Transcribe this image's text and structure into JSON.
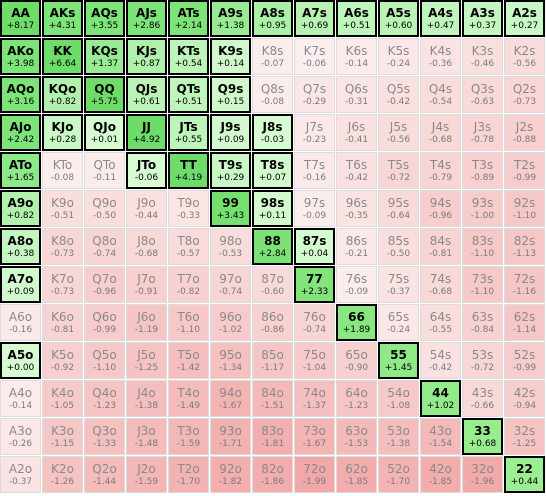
{
  "grid": {
    "selected_color": "#7ee57a",
    "ranks": [
      "A",
      "K",
      "Q",
      "J",
      "T",
      "9",
      "8",
      "7",
      "6",
      "5",
      "4",
      "3",
      "2"
    ],
    "rows": [
      [
        {
          "hand": "AA",
          "value": "+8.17",
          "selected": true
        },
        {
          "hand": "AKs",
          "value": "+4.31",
          "selected": true
        },
        {
          "hand": "AQs",
          "value": "+3.55",
          "selected": true
        },
        {
          "hand": "AJs",
          "value": "+2.86",
          "selected": true
        },
        {
          "hand": "ATs",
          "value": "+2.14",
          "selected": true
        },
        {
          "hand": "A9s",
          "value": "+1.38",
          "selected": true
        },
        {
          "hand": "A8s",
          "value": "+0.95",
          "selected": true
        },
        {
          "hand": "A7s",
          "value": "+0.69",
          "selected": true
        },
        {
          "hand": "A6s",
          "value": "+0.51",
          "selected": true
        },
        {
          "hand": "A5s",
          "value": "+0.60",
          "selected": true
        },
        {
          "hand": "A4s",
          "value": "+0.47",
          "selected": true
        },
        {
          "hand": "A3s",
          "value": "+0.37",
          "selected": true
        },
        {
          "hand": "A2s",
          "value": "+0.27",
          "selected": true
        }
      ],
      [
        {
          "hand": "AKo",
          "value": "+3.98",
          "selected": true
        },
        {
          "hand": "KK",
          "value": "+6.64",
          "selected": true
        },
        {
          "hand": "KQs",
          "value": "+1.37",
          "selected": true
        },
        {
          "hand": "KJs",
          "value": "+0.87",
          "selected": true
        },
        {
          "hand": "KTs",
          "value": "+0.54",
          "selected": true
        },
        {
          "hand": "K9s",
          "value": "+0.14",
          "selected": true
        },
        {
          "hand": "K8s",
          "value": "-0.07",
          "selected": false
        },
        {
          "hand": "K7s",
          "value": "-0.06",
          "selected": false
        },
        {
          "hand": "K6s",
          "value": "-0.14",
          "selected": false
        },
        {
          "hand": "K5s",
          "value": "-0.24",
          "selected": false
        },
        {
          "hand": "K4s",
          "value": "-0.36",
          "selected": false
        },
        {
          "hand": "K3s",
          "value": "-0.46",
          "selected": false
        },
        {
          "hand": "K2s",
          "value": "-0.56",
          "selected": false
        }
      ],
      [
        {
          "hand": "AQo",
          "value": "+3.16",
          "selected": true
        },
        {
          "hand": "KQo",
          "value": "+0.82",
          "selected": true
        },
        {
          "hand": "QQ",
          "value": "+5.75",
          "selected": true
        },
        {
          "hand": "QJs",
          "value": "+0.61",
          "selected": true
        },
        {
          "hand": "QTs",
          "value": "+0.51",
          "selected": true
        },
        {
          "hand": "Q9s",
          "value": "+0.15",
          "selected": true
        },
        {
          "hand": "Q8s",
          "value": "-0.08",
          "selected": false
        },
        {
          "hand": "Q7s",
          "value": "-0.29",
          "selected": false
        },
        {
          "hand": "Q6s",
          "value": "-0.31",
          "selected": false
        },
        {
          "hand": "Q5s",
          "value": "-0.42",
          "selected": false
        },
        {
          "hand": "Q4s",
          "value": "-0.54",
          "selected": false
        },
        {
          "hand": "Q3s",
          "value": "-0.63",
          "selected": false
        },
        {
          "hand": "Q2s",
          "value": "-0.73",
          "selected": false
        }
      ],
      [
        {
          "hand": "AJo",
          "value": "+2.42",
          "selected": true
        },
        {
          "hand": "KJo",
          "value": "+0.28",
          "selected": true
        },
        {
          "hand": "QJo",
          "value": "+0.01",
          "selected": true
        },
        {
          "hand": "JJ",
          "value": "+4.92",
          "selected": true
        },
        {
          "hand": "JTs",
          "value": "+0.55",
          "selected": true
        },
        {
          "hand": "J9s",
          "value": "+0.09",
          "selected": true
        },
        {
          "hand": "J8s",
          "value": "-0.03",
          "selected": true
        },
        {
          "hand": "J7s",
          "value": "-0.23",
          "selected": false
        },
        {
          "hand": "J6s",
          "value": "-0.41",
          "selected": false
        },
        {
          "hand": "J5s",
          "value": "-0.56",
          "selected": false
        },
        {
          "hand": "J4s",
          "value": "-0.68",
          "selected": false
        },
        {
          "hand": "J3s",
          "value": "-0.78",
          "selected": false
        },
        {
          "hand": "J2s",
          "value": "-0.88",
          "selected": false
        }
      ],
      [
        {
          "hand": "ATo",
          "value": "+1.65",
          "selected": true
        },
        {
          "hand": "KTo",
          "value": "-0.08",
          "selected": false
        },
        {
          "hand": "QTo",
          "value": "-0.11",
          "selected": false
        },
        {
          "hand": "JTo",
          "value": "-0.06",
          "selected": true
        },
        {
          "hand": "TT",
          "value": "+4.19",
          "selected": true
        },
        {
          "hand": "T9s",
          "value": "+0.29",
          "selected": true
        },
        {
          "hand": "T8s",
          "value": "+0.07",
          "selected": true
        },
        {
          "hand": "T7s",
          "value": "-0.16",
          "selected": false
        },
        {
          "hand": "T6s",
          "value": "-0.42",
          "selected": false
        },
        {
          "hand": "T5s",
          "value": "-0.72",
          "selected": false
        },
        {
          "hand": "T4s",
          "value": "-0.79",
          "selected": false
        },
        {
          "hand": "T3s",
          "value": "-0.89",
          "selected": false
        },
        {
          "hand": "T2s",
          "value": "-0.99",
          "selected": false
        }
      ],
      [
        {
          "hand": "A9o",
          "value": "+0.82",
          "selected": true
        },
        {
          "hand": "K9o",
          "value": "-0.51",
          "selected": false
        },
        {
          "hand": "Q9o",
          "value": "-0.50",
          "selected": false
        },
        {
          "hand": "J9o",
          "value": "-0.44",
          "selected": false
        },
        {
          "hand": "T9o",
          "value": "-0.33",
          "selected": false
        },
        {
          "hand": "99",
          "value": "+3.43",
          "selected": true
        },
        {
          "hand": "98s",
          "value": "+0.11",
          "selected": true
        },
        {
          "hand": "97s",
          "value": "-0.09",
          "selected": false
        },
        {
          "hand": "96s",
          "value": "-0.35",
          "selected": false
        },
        {
          "hand": "95s",
          "value": "-0.64",
          "selected": false
        },
        {
          "hand": "94s",
          "value": "-0.96",
          "selected": false
        },
        {
          "hand": "93s",
          "value": "-1.00",
          "selected": false
        },
        {
          "hand": "92s",
          "value": "-1.10",
          "selected": false
        }
      ],
      [
        {
          "hand": "A8o",
          "value": "+0.38",
          "selected": true
        },
        {
          "hand": "K8o",
          "value": "-0.73",
          "selected": false
        },
        {
          "hand": "Q8o",
          "value": "-0.74",
          "selected": false
        },
        {
          "hand": "J8o",
          "value": "-0.68",
          "selected": false
        },
        {
          "hand": "T8o",
          "value": "-0.57",
          "selected": false
        },
        {
          "hand": "98o",
          "value": "-0.53",
          "selected": false
        },
        {
          "hand": "88",
          "value": "+2.84",
          "selected": true
        },
        {
          "hand": "87s",
          "value": "+0.04",
          "selected": true
        },
        {
          "hand": "86s",
          "value": "-0.21",
          "selected": false
        },
        {
          "hand": "85s",
          "value": "-0.50",
          "selected": false
        },
        {
          "hand": "84s",
          "value": "-0.81",
          "selected": false
        },
        {
          "hand": "83s",
          "value": "-1.10",
          "selected": false
        },
        {
          "hand": "82s",
          "value": "-1.13",
          "selected": false
        }
      ],
      [
        {
          "hand": "A7o",
          "value": "+0.09",
          "selected": true
        },
        {
          "hand": "K7o",
          "value": "-0.73",
          "selected": false
        },
        {
          "hand": "Q7o",
          "value": "-0.96",
          "selected": false
        },
        {
          "hand": "J7o",
          "value": "-0.91",
          "selected": false
        },
        {
          "hand": "T7o",
          "value": "-0.82",
          "selected": false
        },
        {
          "hand": "97o",
          "value": "-0.74",
          "selected": false
        },
        {
          "hand": "87o",
          "value": "-0.60",
          "selected": false
        },
        {
          "hand": "77",
          "value": "+2.33",
          "selected": true
        },
        {
          "hand": "76s",
          "value": "-0.09",
          "selected": false
        },
        {
          "hand": "75s",
          "value": "-0.37",
          "selected": false
        },
        {
          "hand": "74s",
          "value": "-0.68",
          "selected": false
        },
        {
          "hand": "73s",
          "value": "-1.10",
          "selected": false
        },
        {
          "hand": "72s",
          "value": "-1.16",
          "selected": false
        }
      ],
      [
        {
          "hand": "A6o",
          "value": "-0.16",
          "selected": false
        },
        {
          "hand": "K6o",
          "value": "-0.81",
          "selected": false
        },
        {
          "hand": "Q6o",
          "value": "-0.99",
          "selected": false
        },
        {
          "hand": "J6o",
          "value": "-1.19",
          "selected": false
        },
        {
          "hand": "T6o",
          "value": "-1.10",
          "selected": false
        },
        {
          "hand": "96o",
          "value": "-1.02",
          "selected": false
        },
        {
          "hand": "86o",
          "value": "-0.86",
          "selected": false
        },
        {
          "hand": "76o",
          "value": "-0.74",
          "selected": false
        },
        {
          "hand": "66",
          "value": "+1.89",
          "selected": true
        },
        {
          "hand": "65s",
          "value": "-0.24",
          "selected": false
        },
        {
          "hand": "64s",
          "value": "-0.55",
          "selected": false
        },
        {
          "hand": "63s",
          "value": "-0.84",
          "selected": false
        },
        {
          "hand": "62s",
          "value": "-1.14",
          "selected": false
        }
      ],
      [
        {
          "hand": "A5o",
          "value": "+0.00",
          "selected": true
        },
        {
          "hand": "K5o",
          "value": "-0.92",
          "selected": false
        },
        {
          "hand": "Q5o",
          "value": "-1.10",
          "selected": false
        },
        {
          "hand": "J5o",
          "value": "-1.25",
          "selected": false
        },
        {
          "hand": "T5o",
          "value": "-1.42",
          "selected": false
        },
        {
          "hand": "95o",
          "value": "-1.34",
          "selected": false
        },
        {
          "hand": "85o",
          "value": "-1.17",
          "selected": false
        },
        {
          "hand": "75o",
          "value": "-1.04",
          "selected": false
        },
        {
          "hand": "65o",
          "value": "-0.90",
          "selected": false
        },
        {
          "hand": "55",
          "value": "+1.45",
          "selected": true
        },
        {
          "hand": "54s",
          "value": "-0.42",
          "selected": false
        },
        {
          "hand": "53s",
          "value": "-0.72",
          "selected": false
        },
        {
          "hand": "52s",
          "value": "-0.99",
          "selected": false
        }
      ],
      [
        {
          "hand": "A4o",
          "value": "-0.14",
          "selected": false
        },
        {
          "hand": "K4o",
          "value": "-1.05",
          "selected": false
        },
        {
          "hand": "Q4o",
          "value": "-1.23",
          "selected": false
        },
        {
          "hand": "J4o",
          "value": "-1.38",
          "selected": false
        },
        {
          "hand": "T4o",
          "value": "-1.49",
          "selected": false
        },
        {
          "hand": "94o",
          "value": "-1.67",
          "selected": false
        },
        {
          "hand": "84o",
          "value": "-1.51",
          "selected": false
        },
        {
          "hand": "74o",
          "value": "-1.37",
          "selected": false
        },
        {
          "hand": "64o",
          "value": "-1.23",
          "selected": false
        },
        {
          "hand": "54o",
          "value": "-1.08",
          "selected": false
        },
        {
          "hand": "44",
          "value": "+1.02",
          "selected": true
        },
        {
          "hand": "43s",
          "value": "-0.66",
          "selected": false
        },
        {
          "hand": "42s",
          "value": "-0.94",
          "selected": false
        }
      ],
      [
        {
          "hand": "A3o",
          "value": "-0.26",
          "selected": false
        },
        {
          "hand": "K3o",
          "value": "-1.15",
          "selected": false
        },
        {
          "hand": "Q3o",
          "value": "-1.33",
          "selected": false
        },
        {
          "hand": "J3o",
          "value": "-1.48",
          "selected": false
        },
        {
          "hand": "T3o",
          "value": "-1.59",
          "selected": false
        },
        {
          "hand": "93o",
          "value": "-1.71",
          "selected": false
        },
        {
          "hand": "83o",
          "value": "-1.81",
          "selected": false
        },
        {
          "hand": "73o",
          "value": "-1.67",
          "selected": false
        },
        {
          "hand": "63o",
          "value": "-1.53",
          "selected": false
        },
        {
          "hand": "53o",
          "value": "-1.38",
          "selected": false
        },
        {
          "hand": "43o",
          "value": "-1.54",
          "selected": false
        },
        {
          "hand": "33",
          "value": "+0.68",
          "selected": true
        },
        {
          "hand": "32s",
          "value": "-1.25",
          "selected": false
        }
      ],
      [
        {
          "hand": "A2o",
          "value": "-0.37",
          "selected": false
        },
        {
          "hand": "K2o",
          "value": "-1.26",
          "selected": false
        },
        {
          "hand": "Q2o",
          "value": "-1.44",
          "selected": false
        },
        {
          "hand": "J2o",
          "value": "-1.59",
          "selected": false
        },
        {
          "hand": "T2o",
          "value": "-1.70",
          "selected": false
        },
        {
          "hand": "92o",
          "value": "-1.82",
          "selected": false
        },
        {
          "hand": "82o",
          "value": "-1.86",
          "selected": false
        },
        {
          "hand": "72o",
          "value": "-1.99",
          "selected": false
        },
        {
          "hand": "62o",
          "value": "-1.85",
          "selected": false
        },
        {
          "hand": "52o",
          "value": "-1.70",
          "selected": false
        },
        {
          "hand": "42o",
          "value": "-1.85",
          "selected": false
        },
        {
          "hand": "32o",
          "value": "-1.96",
          "selected": false
        },
        {
          "hand": "22",
          "value": "+0.44",
          "selected": true
        }
      ]
    ]
  }
}
